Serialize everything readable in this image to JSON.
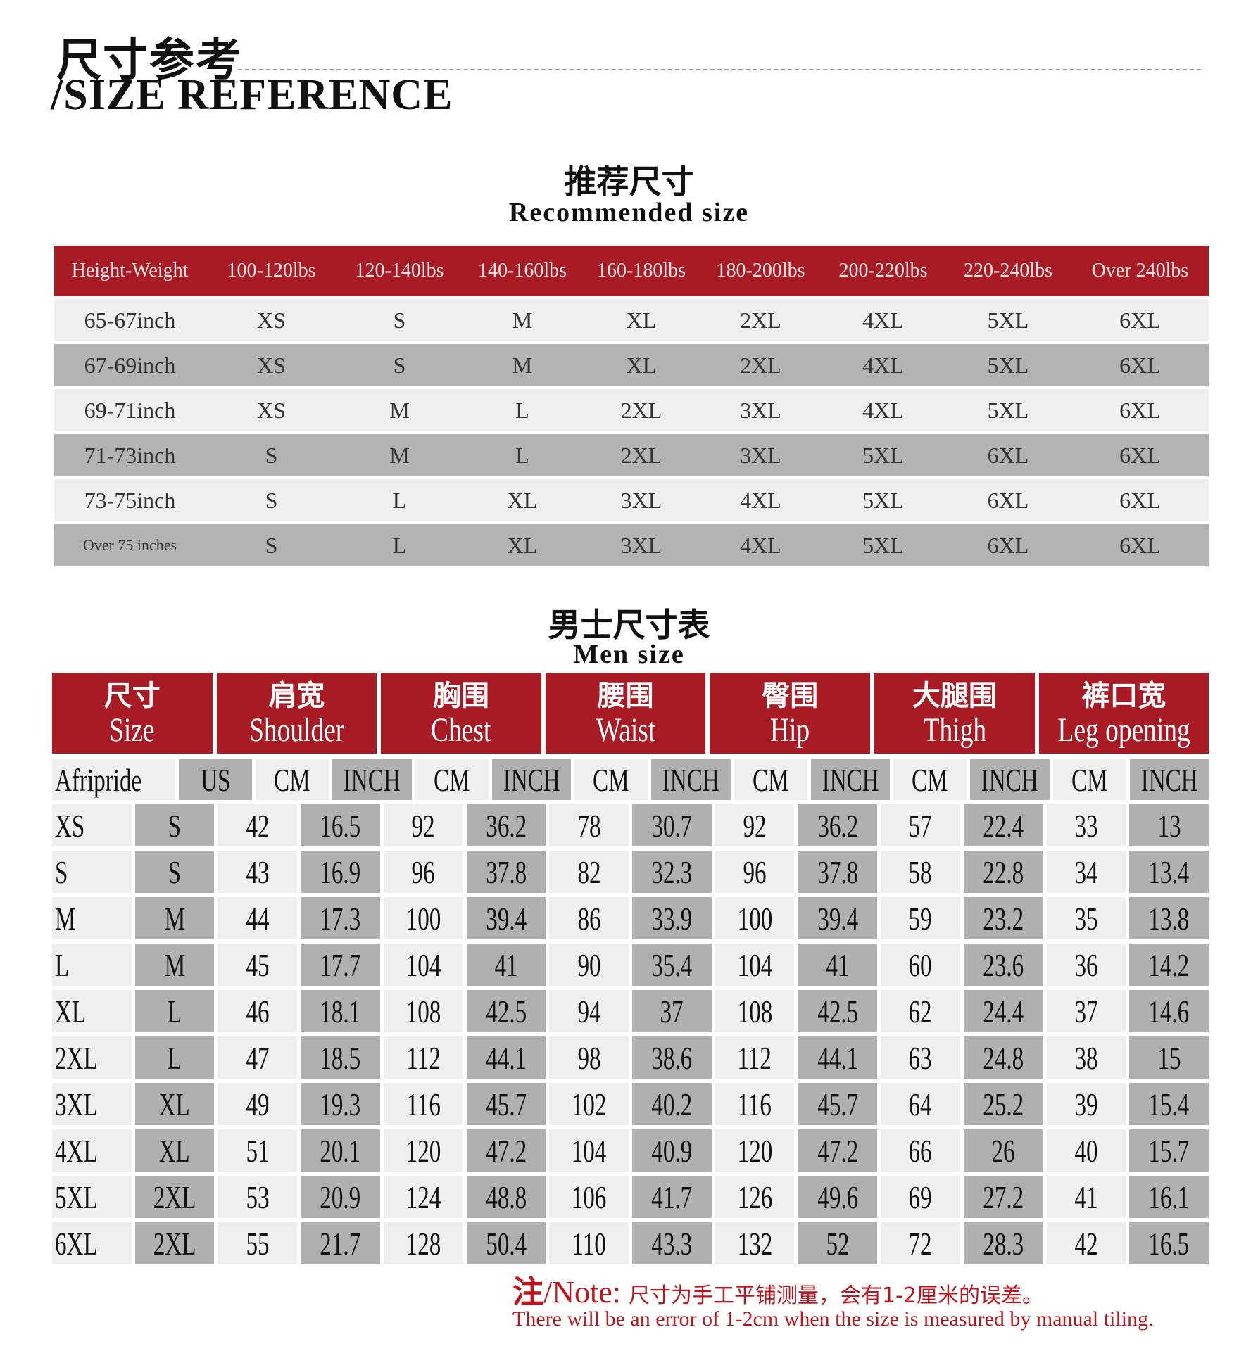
{
  "header": {
    "title_cn": "尺寸参考",
    "title_en": "/SIZE REFERENCE"
  },
  "recommended": {
    "title_cn": "推荐尺寸",
    "title_en": "Recommended size",
    "columns": [
      "Height-Weight",
      "100-120lbs",
      "120-140lbs",
      "140-160lbs",
      "160-180lbs",
      "180-200lbs",
      "200-220lbs",
      "220-240lbs",
      "Over  240lbs"
    ],
    "rows": [
      [
        "65-67inch",
        "XS",
        "S",
        "M",
        "XL",
        "2XL",
        "4XL",
        "5XL",
        "6XL"
      ],
      [
        "67-69inch",
        "XS",
        "S",
        "M",
        "XL",
        "2XL",
        "4XL",
        "5XL",
        "6XL"
      ],
      [
        "69-71inch",
        "XS",
        "M",
        "L",
        "2XL",
        "3XL",
        "4XL",
        "5XL",
        "6XL"
      ],
      [
        "71-73inch",
        "S",
        "M",
        "L",
        "2XL",
        "3XL",
        "5XL",
        "6XL",
        "6XL"
      ],
      [
        "73-75inch",
        "S",
        "L",
        "XL",
        "3XL",
        "4XL",
        "5XL",
        "6XL",
        "6XL"
      ],
      [
        "Over  75  inches",
        "S",
        "L",
        "XL",
        "3XL",
        "4XL",
        "5XL",
        "6XL",
        "6XL"
      ]
    ]
  },
  "men": {
    "title_cn": "男士尺寸表",
    "title_en": "Men size",
    "groups": [
      {
        "cn": "尺寸",
        "en": "Size"
      },
      {
        "cn": "肩宽",
        "en": "Shoulder"
      },
      {
        "cn": "胸围",
        "en": "Chest"
      },
      {
        "cn": "腰围",
        "en": "Waist"
      },
      {
        "cn": "臀围",
        "en": "Hip"
      },
      {
        "cn": "大腿围",
        "en": "Thigh"
      },
      {
        "cn": "裤口宽",
        "en": "Leg opening"
      }
    ],
    "units": [
      "Afripride",
      "US",
      "CM",
      "INCH",
      "CM",
      "INCH",
      "CM",
      "INCH",
      "CM",
      "INCH",
      "CM",
      "INCH",
      "CM",
      "INCH"
    ],
    "rows": [
      [
        "XS",
        "S",
        "42",
        "16.5",
        "92",
        "36.2",
        "78",
        "30.7",
        "92",
        "36.2",
        "57",
        "22.4",
        "33",
        "13"
      ],
      [
        "S",
        "S",
        "43",
        "16.9",
        "96",
        "37.8",
        "82",
        "32.3",
        "96",
        "37.8",
        "58",
        "22.8",
        "34",
        "13.4"
      ],
      [
        "M",
        "M",
        "44",
        "17.3",
        "100",
        "39.4",
        "86",
        "33.9",
        "100",
        "39.4",
        "59",
        "23.2",
        "35",
        "13.8"
      ],
      [
        "L",
        "M",
        "45",
        "17.7",
        "104",
        "41",
        "90",
        "35.4",
        "104",
        "41",
        "60",
        "23.6",
        "36",
        "14.2"
      ],
      [
        "XL",
        "L",
        "46",
        "18.1",
        "108",
        "42.5",
        "94",
        "37",
        "108",
        "42.5",
        "62",
        "24.4",
        "37",
        "14.6"
      ],
      [
        "2XL",
        "L",
        "47",
        "18.5",
        "112",
        "44.1",
        "98",
        "38.6",
        "112",
        "44.1",
        "63",
        "24.8",
        "38",
        "15"
      ],
      [
        "3XL",
        "XL",
        "49",
        "19.3",
        "116",
        "45.7",
        "102",
        "40.2",
        "116",
        "45.7",
        "64",
        "25.2",
        "39",
        "15.4"
      ],
      [
        "4XL",
        "XL",
        "51",
        "20.1",
        "120",
        "47.2",
        "104",
        "40.9",
        "120",
        "47.2",
        "66",
        "26",
        "40",
        "15.7"
      ],
      [
        "5XL",
        "2XL",
        "53",
        "20.9",
        "124",
        "48.8",
        "106",
        "41.7",
        "126",
        "49.6",
        "69",
        "27.2",
        "41",
        "16.1"
      ],
      [
        "6XL",
        "2XL",
        "55",
        "21.7",
        "128",
        "50.4",
        "110",
        "43.3",
        "132",
        "52",
        "72",
        "28.3",
        "42",
        "16.5"
      ]
    ]
  },
  "note": {
    "label_cn": "注",
    "label_en": "/Note:",
    "text_cn": "尺寸为手工平铺测量，会有1-2厘米的误差。",
    "text_en": "There will be an error of 1-2cm when the size is measured by manual tiling."
  },
  "colors": {
    "header_red": "#a91b24",
    "row_light": "#efefef",
    "row_dark": "#b3b3b3",
    "note_red": "#c0141c"
  }
}
